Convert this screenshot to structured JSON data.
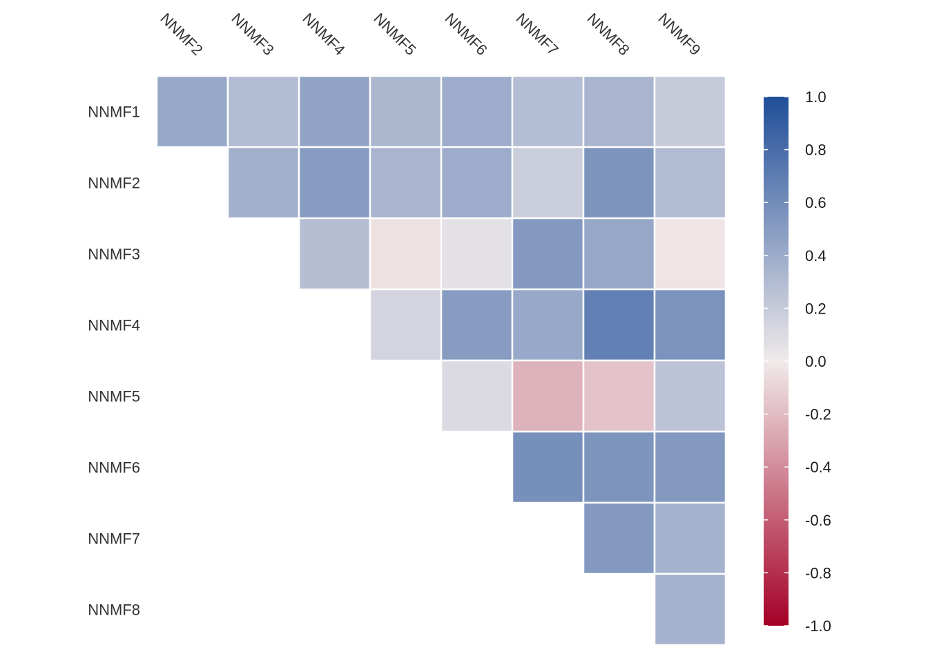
{
  "chart_data": {
    "type": "heatmap",
    "title": "",
    "xlabel": "",
    "ylabel": "",
    "columns": [
      "NNMF2",
      "NNMF3",
      "NNMF4",
      "NNMF5",
      "NNMF6",
      "NNMF7",
      "NNMF8",
      "NNMF9"
    ],
    "rows": [
      "NNMF1",
      "NNMF2",
      "NNMF3",
      "NNMF4",
      "NNMF5",
      "NNMF6",
      "NNMF7",
      "NNMF8"
    ],
    "values": [
      [
        0.42,
        0.3,
        0.45,
        0.33,
        0.4,
        0.29,
        0.34,
        0.2
      ],
      [
        null,
        0.37,
        0.5,
        0.34,
        0.4,
        0.18,
        0.55,
        0.3
      ],
      [
        null,
        null,
        0.28,
        -0.04,
        0.06,
        0.52,
        0.43,
        -0.02
      ],
      [
        null,
        null,
        null,
        0.14,
        0.5,
        0.42,
        0.68,
        0.56
      ],
      [
        null,
        null,
        null,
        null,
        0.1,
        -0.24,
        -0.17,
        0.25
      ],
      [
        null,
        null,
        null,
        null,
        null,
        0.58,
        0.55,
        0.52
      ],
      [
        null,
        null,
        null,
        null,
        null,
        null,
        0.52,
        0.36
      ],
      [
        null,
        null,
        null,
        null,
        null,
        null,
        null,
        0.36
      ]
    ],
    "color_scale": {
      "min": -1.0,
      "max": 1.0,
      "colors": [
        "#a50026",
        "#f0eaea",
        "#1f4e99"
      ],
      "ticks": [
        "-1.0",
        "-0.8",
        "-0.6",
        "-0.4",
        "-0.2",
        "0.0",
        "0.2",
        "0.4",
        "0.6",
        "0.8",
        "1.0"
      ]
    },
    "legend_position": "right"
  }
}
